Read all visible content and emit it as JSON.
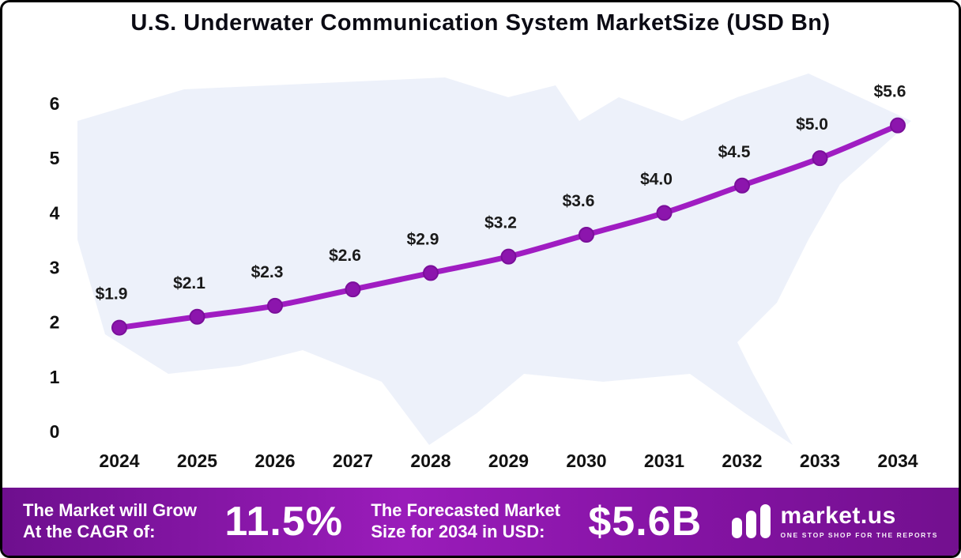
{
  "title": "U.S. Underwater Communication System MarketSize (USD Bn)",
  "chart_data": {
    "type": "line",
    "title": "U.S. Underwater Communication System MarketSize (USD Bn)",
    "categories": [
      "2024",
      "2025",
      "2026",
      "2027",
      "2028",
      "2029",
      "2030",
      "2031",
      "2032",
      "2033",
      "2034"
    ],
    "values": [
      1.9,
      2.1,
      2.3,
      2.6,
      2.9,
      3.2,
      3.6,
      4.0,
      4.5,
      5.0,
      5.6
    ],
    "point_labels": [
      "$1.9",
      "$2.1",
      "$2.3",
      "$2.6",
      "$2.9",
      "$3.2",
      "$3.6",
      "$4.0",
      "$4.5",
      "$5.0",
      "$5.6"
    ],
    "xlabel": "",
    "ylabel": "",
    "ylim": [
      0,
      6
    ],
    "yticks": [
      0,
      1,
      2,
      3,
      4,
      5,
      6
    ],
    "grid": false,
    "legend": "none",
    "line_color": "#a01dc2",
    "marker_color": "#8c15ad",
    "marker_stroke": "#7a0f9a",
    "map_background_color": "#edf1fa"
  },
  "banner": {
    "cagr_label_line1": "The Market will Grow",
    "cagr_label_line2": "At the CAGR of:",
    "cagr_value": "11.5%",
    "forecast_label_line1": "The Forecasted Market",
    "forecast_label_line2": "Size for 2034 in USD:",
    "forecast_value": "$5.6B",
    "logo_text": "market.us",
    "logo_tagline": "ONE STOP SHOP FOR THE REPORTS",
    "background_color": "#8413a3"
  }
}
